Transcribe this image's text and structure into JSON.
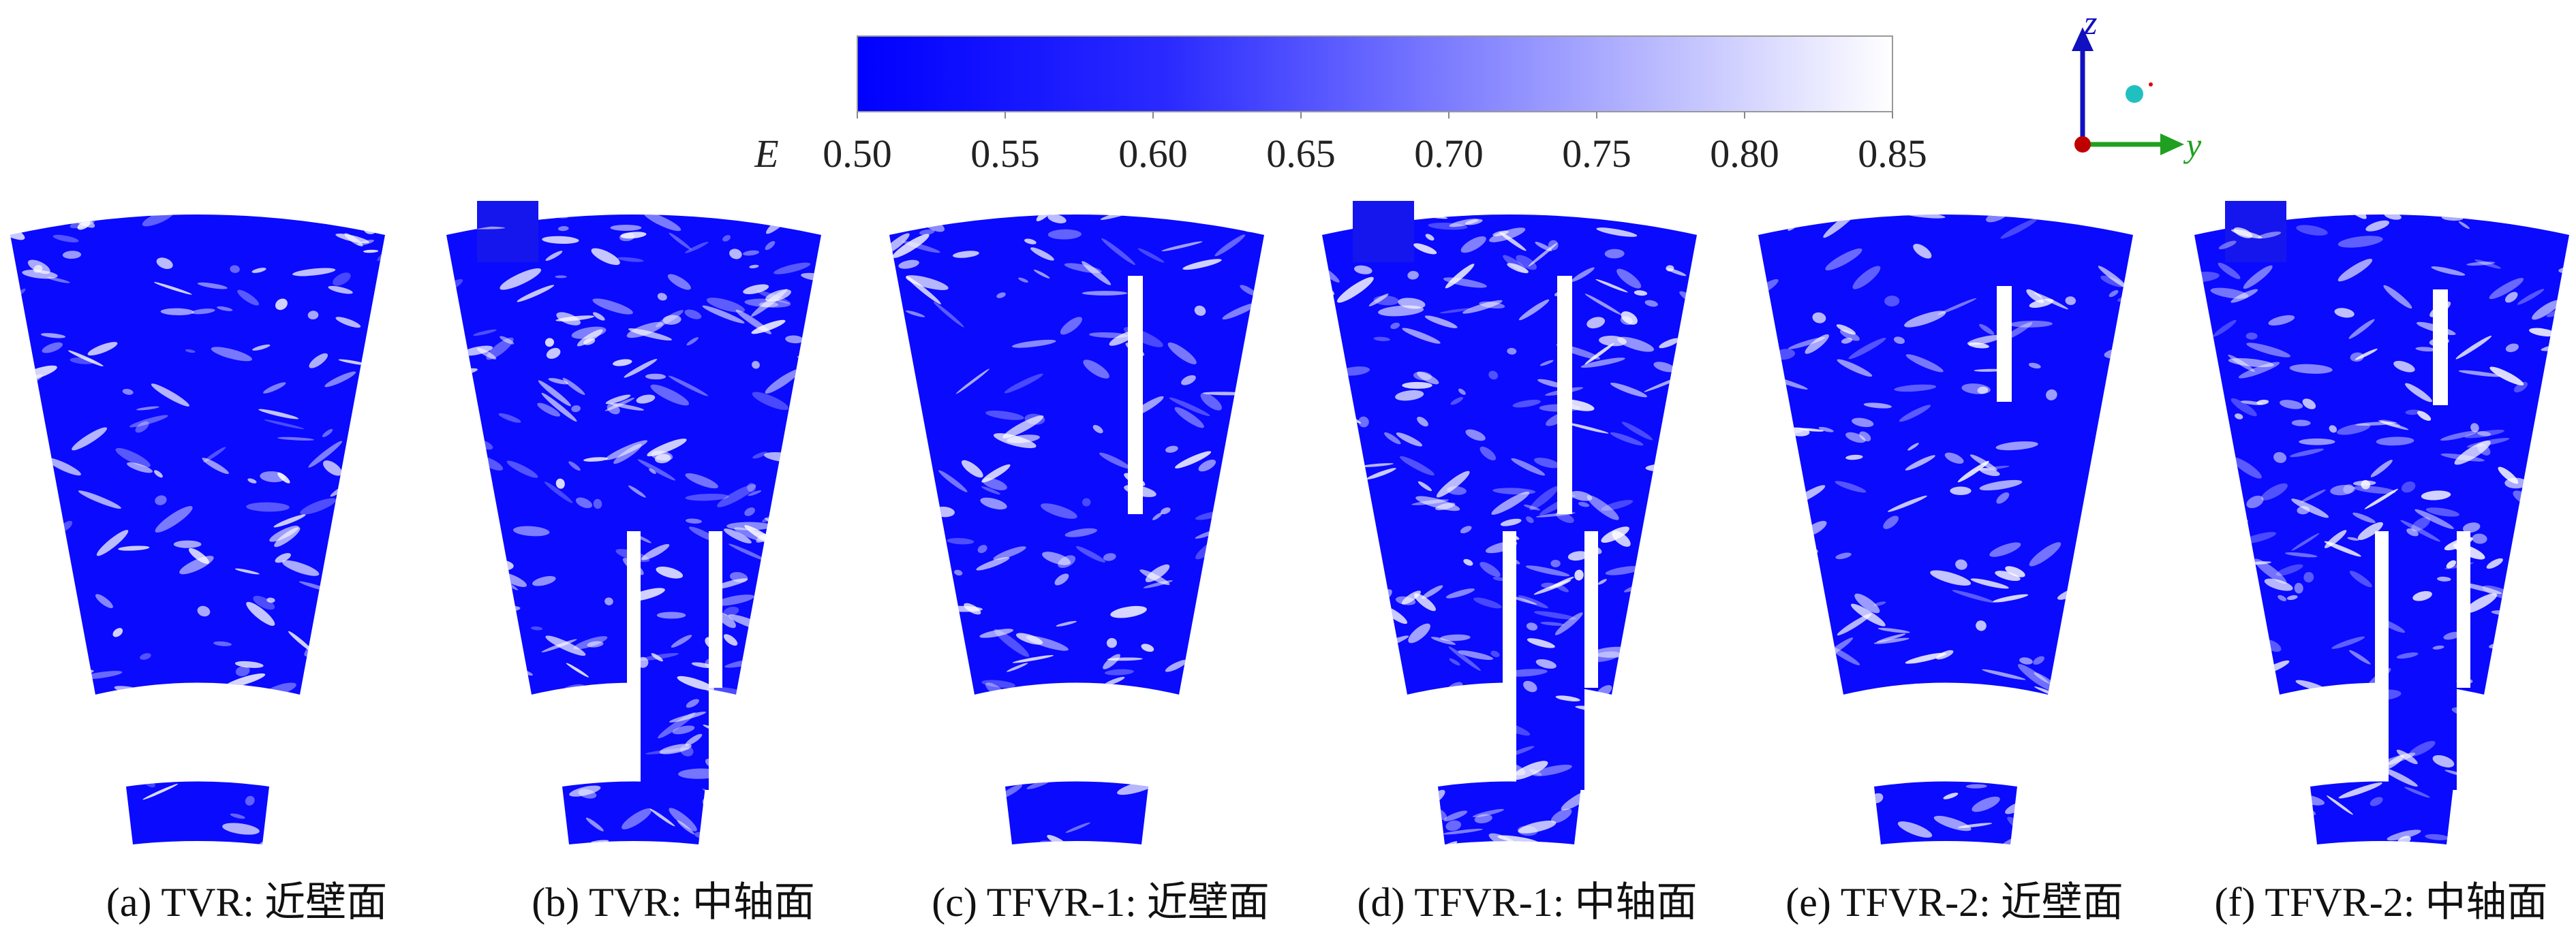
{
  "colorbar": {
    "label": "E",
    "range": [
      0.5,
      0.85
    ],
    "ticks": [
      {
        "value": 0.5,
        "label": "0.50"
      },
      0.55,
      {
        "value": 0.6,
        "label": "0.60"
      },
      0.65,
      {
        "value": 0.7,
        "label": "0.70"
      },
      0.75,
      {
        "value": 0.8,
        "label": "0.80"
      },
      0.85
    ]
  },
  "axes": {
    "z": "z",
    "y": "y"
  },
  "panels": [
    {
      "caption": "(a) TVR: 近壁面"
    },
    {
      "caption": "(b) TVR: 中轴面"
    },
    {
      "caption": "(c) TFVR-1: 近壁面"
    },
    {
      "caption": "(d) TFVR-1: 中轴面"
    },
    {
      "caption": "(e) TFVR-2: 近壁面"
    },
    {
      "caption": "(f) TFVR-2: 中轴面"
    }
  ]
}
